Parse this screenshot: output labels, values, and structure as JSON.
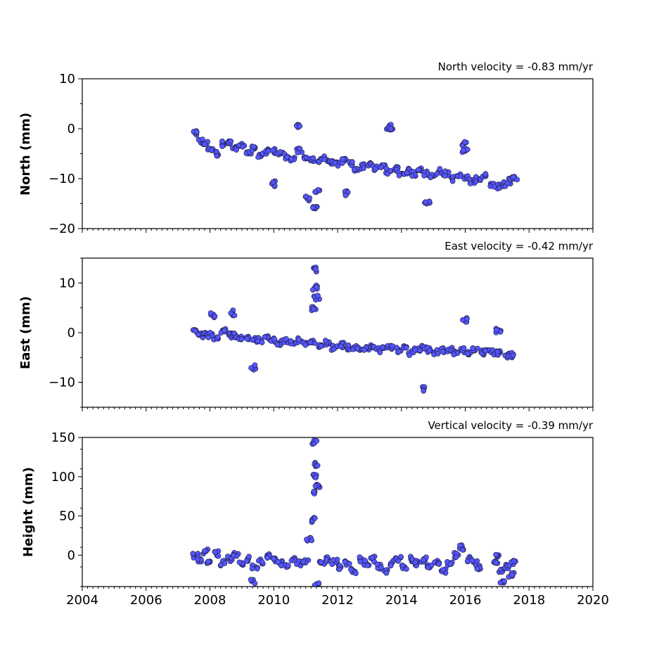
{
  "colors": {
    "marker_fill": "#5555ff",
    "marker_edge": "#1a1a33",
    "axis": "#000000",
    "background": "#ffffff"
  },
  "chart_data": [
    {
      "type": "scatter",
      "title": "North velocity = -0.83 mm/yr",
      "ylabel": "North (mm)",
      "xlabel": "",
      "xlim": [
        2004,
        2020
      ],
      "ylim": [
        -20,
        10
      ],
      "xticks": [
        "2004",
        "2006",
        "2008",
        "2010",
        "2012",
        "2014",
        "2016",
        "2018",
        "2020"
      ],
      "yticks": [
        "10",
        "0",
        "−10",
        "−20"
      ],
      "show_xtick_labels": false,
      "grid": false,
      "series": [
        {
          "x": [
            2007.55,
            2007.7,
            2007.85,
            2008.0,
            2008.2,
            2008.4,
            2008.6,
            2008.8,
            2009.0,
            2009.2,
            2009.4,
            2009.6,
            2009.8,
            2010.0,
            2010.2,
            2010.4,
            2010.6,
            2010.8,
            2011.0,
            2011.2,
            2011.4,
            2011.6,
            2011.8,
            2012.0,
            2012.2,
            2012.4,
            2012.6,
            2012.8,
            2013.0,
            2013.2,
            2013.4,
            2013.6,
            2013.8,
            2014.0,
            2014.2,
            2014.4,
            2014.6,
            2014.8,
            2015.0,
            2015.2,
            2015.4,
            2015.6,
            2015.8,
            2016.0,
            2016.2,
            2016.4,
            2016.6,
            2016.8,
            2017.0,
            2017.2,
            2017.4,
            2017.55,
            2010.75,
            2011.3,
            2011.05,
            2013.6,
            2013.65,
            2015.95,
            2016.0,
            2009.95,
            2011.35,
            2012.25,
            2014.8
          ],
          "y": [
            -1,
            -2.5,
            -3,
            -4,
            -5,
            -3,
            -2.5,
            -4,
            -3.5,
            -5,
            -4,
            -5.5,
            -4.5,
            -4.5,
            -5,
            -5.5,
            -6,
            -4.5,
            -6,
            -6,
            -6.5,
            -6,
            -7,
            -7,
            -6.5,
            -7,
            -8,
            -7.5,
            -7,
            -8,
            -7.5,
            -8.5,
            -8,
            -9,
            -8.5,
            -9,
            -8,
            -9,
            -9.5,
            -8.5,
            -9,
            -10,
            -9.5,
            -10,
            -10.5,
            -10,
            -9.5,
            -11,
            -11.5,
            -11,
            -10.5,
            -10,
            0.8,
            -16,
            -14,
            0.3,
            0.1,
            -3,
            -4.5,
            -11,
            -12.5,
            -13,
            -15
          ]
        }
      ]
    },
    {
      "type": "scatter",
      "title": "East velocity = -0.42 mm/yr",
      "ylabel": "East (mm)",
      "xlabel": "",
      "xlim": [
        2004,
        2020
      ],
      "ylim": [
        -15,
        15
      ],
      "xticks": [
        "2004",
        "2006",
        "2008",
        "2010",
        "2012",
        "2014",
        "2016",
        "2018",
        "2020"
      ],
      "yticks": [
        "10",
        "0",
        "−10"
      ],
      "show_xtick_labels": false,
      "grid": false,
      "series": [
        {
          "x": [
            2007.55,
            2007.7,
            2007.85,
            2008.0,
            2008.2,
            2008.4,
            2008.6,
            2008.8,
            2009.0,
            2009.2,
            2009.4,
            2009.6,
            2009.8,
            2010.0,
            2010.2,
            2010.4,
            2010.6,
            2010.8,
            2011.0,
            2011.2,
            2011.25,
            2011.28,
            2011.3,
            2011.35,
            2011.5,
            2011.7,
            2011.9,
            2012.1,
            2012.3,
            2012.5,
            2012.7,
            2012.9,
            2013.1,
            2013.3,
            2013.5,
            2013.7,
            2013.9,
            2014.1,
            2014.3,
            2014.5,
            2014.7,
            2014.9,
            2015.1,
            2015.3,
            2015.5,
            2015.7,
            2015.9,
            2016.1,
            2016.3,
            2016.5,
            2016.7,
            2016.9,
            2017.1,
            2017.3,
            2017.5,
            2008.1,
            2008.7,
            2009.35,
            2014.7,
            2015.98,
            2017.05
          ],
          "y": [
            0.5,
            -0.5,
            0,
            -0.5,
            -1,
            0.5,
            -0.5,
            -0.5,
            -1,
            -1,
            -1.5,
            -1.5,
            -1,
            -1.5,
            -2,
            -1.5,
            -2,
            -1.5,
            -2,
            -2,
            5,
            9,
            12.8,
            7,
            -2.5,
            -2,
            -3,
            -2.5,
            -3,
            -3,
            -3.5,
            -3,
            -3,
            -3.5,
            -3,
            -3,
            -3.5,
            -3,
            -4,
            -3.5,
            -3,
            -3.5,
            -4,
            -3.5,
            -3.5,
            -4,
            -3.5,
            -4,
            -3.5,
            -4,
            -3.5,
            -4,
            -4,
            -4.5,
            -4.5,
            3.5,
            4,
            -7,
            -11.2,
            2.5,
            0.5
          ]
        }
      ]
    },
    {
      "type": "scatter",
      "title": "Vertical velocity = -0.39 mm/yr",
      "ylabel": "Height (mm)",
      "xlabel": "",
      "xlim": [
        2004,
        2020
      ],
      "ylim": [
        -40,
        150
      ],
      "xticks": [
        "2004",
        "2006",
        "2008",
        "2010",
        "2012",
        "2014",
        "2016",
        "2018",
        "2020"
      ],
      "yticks": [
        "150",
        "100",
        "50",
        "0"
      ],
      "show_xtick_labels": true,
      "grid": false,
      "series": [
        {
          "x": [
            2007.55,
            2007.7,
            2007.85,
            2008.0,
            2008.2,
            2008.4,
            2008.6,
            2008.8,
            2009.0,
            2009.2,
            2009.4,
            2009.6,
            2009.8,
            2010.0,
            2010.2,
            2010.4,
            2010.6,
            2010.8,
            2011.0,
            2011.1,
            2011.2,
            2011.25,
            2011.28,
            2011.3,
            2011.32,
            2011.35,
            2011.5,
            2011.7,
            2011.9,
            2012.1,
            2012.3,
            2012.5,
            2012.7,
            2012.9,
            2013.1,
            2013.3,
            2013.5,
            2013.7,
            2013.9,
            2014.1,
            2014.3,
            2014.5,
            2014.7,
            2014.9,
            2015.1,
            2015.3,
            2015.5,
            2015.7,
            2015.9,
            2016.1,
            2016.3,
            2016.45,
            2016.95,
            2017.05,
            2017.15,
            2017.3,
            2017.45,
            2017.5,
            2009.35,
            2011.35,
            2017.15
          ],
          "y": [
            0,
            -5,
            5,
            -8,
            2,
            -10,
            -5,
            0,
            -10,
            -5,
            -15,
            -8,
            0,
            -5,
            -10,
            -15,
            -5,
            -10,
            -8,
            20,
            45,
            80,
            100,
            145,
            115,
            90,
            -10,
            -5,
            -8,
            -15,
            -10,
            -20,
            -5,
            -10,
            -5,
            -15,
            -20,
            -10,
            -5,
            -15,
            -5,
            -10,
            -5,
            -15,
            -10,
            -20,
            -10,
            0,
            10,
            -5,
            -10,
            -15,
            -10,
            0,
            -20,
            -15,
            -25,
            -10,
            -33,
            -37,
            -35
          ]
        }
      ]
    }
  ]
}
